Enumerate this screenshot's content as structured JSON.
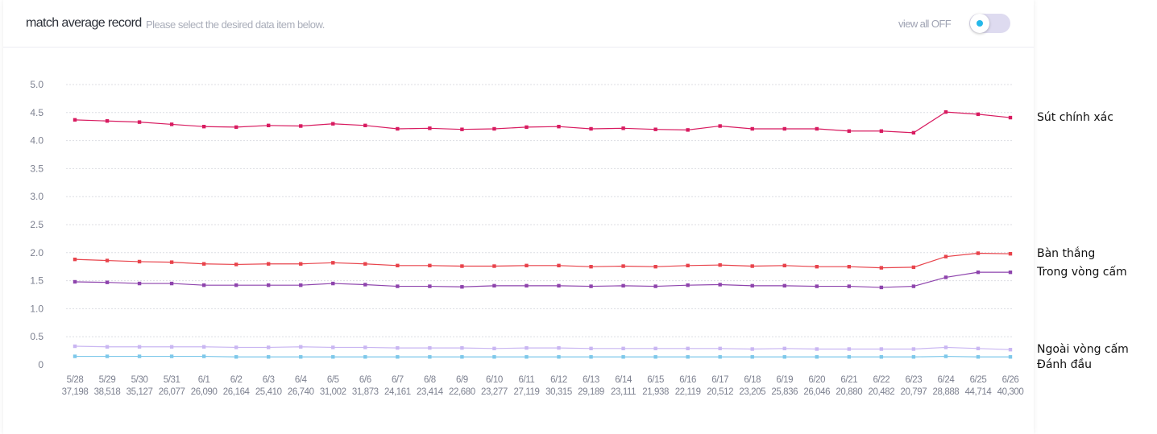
{
  "header": {
    "title": "match average record",
    "subtitle": "Please select the desired data item below.",
    "toggle_label": "view all OFF",
    "toggle_on": false,
    "toggle_dot_color": "#25b8ea",
    "toggle_track_color": "#dedbf0"
  },
  "chart_data": {
    "type": "line",
    "title": "",
    "xlabel": "",
    "ylabel": "",
    "ylim": [
      0,
      5
    ],
    "yticks": [
      "0",
      "0.5",
      "1.0",
      "1.5",
      "2.0",
      "2.5",
      "3.0",
      "3.5",
      "4.0",
      "4.5",
      "5.0"
    ],
    "grid": true,
    "legend_placement": "right",
    "categories": [
      "5/28",
      "5/29",
      "5/30",
      "5/31",
      "6/1",
      "6/2",
      "6/3",
      "6/4",
      "6/5",
      "6/6",
      "6/7",
      "6/8",
      "6/9",
      "6/10",
      "6/11",
      "6/12",
      "6/13",
      "6/14",
      "6/15",
      "6/16",
      "6/17",
      "6/18",
      "6/19",
      "6/20",
      "6/21",
      "6/22",
      "6/23",
      "6/24",
      "6/25",
      "6/26"
    ],
    "counts": [
      "37,198",
      "38,518",
      "35,127",
      "26,077",
      "26,090",
      "26,164",
      "25,410",
      "26,740",
      "31,002",
      "31,873",
      "24,161",
      "23,414",
      "22,680",
      "23,277",
      "27,119",
      "30,315",
      "29,189",
      "23,111",
      "21,938",
      "22,119",
      "20,512",
      "23,205",
      "25,836",
      "26,046",
      "20,880",
      "20,482",
      "20,797",
      "28,888",
      "44,714",
      "40,300"
    ],
    "series": [
      {
        "name": "Sút chính xác",
        "color": "#d81b60",
        "values": [
          4.37,
          4.35,
          4.33,
          4.29,
          4.25,
          4.24,
          4.27,
          4.26,
          4.3,
          4.27,
          4.21,
          4.22,
          4.2,
          4.21,
          4.24,
          4.25,
          4.21,
          4.22,
          4.2,
          4.19,
          4.26,
          4.21,
          4.21,
          4.21,
          4.17,
          4.17,
          4.14,
          4.51,
          4.47,
          4.41
        ]
      },
      {
        "name": "Bàn thắng",
        "color": "#e8434b",
        "values": [
          1.88,
          1.86,
          1.84,
          1.83,
          1.8,
          1.79,
          1.8,
          1.8,
          1.82,
          1.8,
          1.77,
          1.77,
          1.76,
          1.76,
          1.77,
          1.77,
          1.75,
          1.76,
          1.75,
          1.77,
          1.78,
          1.76,
          1.77,
          1.75,
          1.75,
          1.73,
          1.74,
          1.93,
          1.99,
          1.98
        ]
      },
      {
        "name": "Trong vòng cấm",
        "color": "#8e44ad",
        "values": [
          1.48,
          1.47,
          1.45,
          1.45,
          1.42,
          1.42,
          1.42,
          1.42,
          1.45,
          1.43,
          1.4,
          1.4,
          1.39,
          1.41,
          1.41,
          1.41,
          1.4,
          1.41,
          1.4,
          1.42,
          1.43,
          1.41,
          1.41,
          1.4,
          1.4,
          1.38,
          1.4,
          1.56,
          1.65,
          1.65
        ]
      },
      {
        "name": "Ngoài vòng cấm",
        "color": "#c9b6f2",
        "values": [
          0.33,
          0.32,
          0.32,
          0.32,
          0.32,
          0.31,
          0.31,
          0.32,
          0.31,
          0.31,
          0.3,
          0.3,
          0.3,
          0.29,
          0.3,
          0.3,
          0.29,
          0.29,
          0.29,
          0.29,
          0.29,
          0.28,
          0.29,
          0.28,
          0.28,
          0.28,
          0.28,
          0.31,
          0.29,
          0.27
        ]
      },
      {
        "name": "Đánh đầu",
        "color": "#7ec8ea",
        "values": [
          0.15,
          0.15,
          0.15,
          0.15,
          0.15,
          0.14,
          0.14,
          0.14,
          0.14,
          0.14,
          0.14,
          0.14,
          0.14,
          0.14,
          0.14,
          0.14,
          0.14,
          0.14,
          0.14,
          0.14,
          0.14,
          0.14,
          0.14,
          0.14,
          0.14,
          0.14,
          0.14,
          0.15,
          0.14,
          0.14
        ]
      }
    ]
  }
}
